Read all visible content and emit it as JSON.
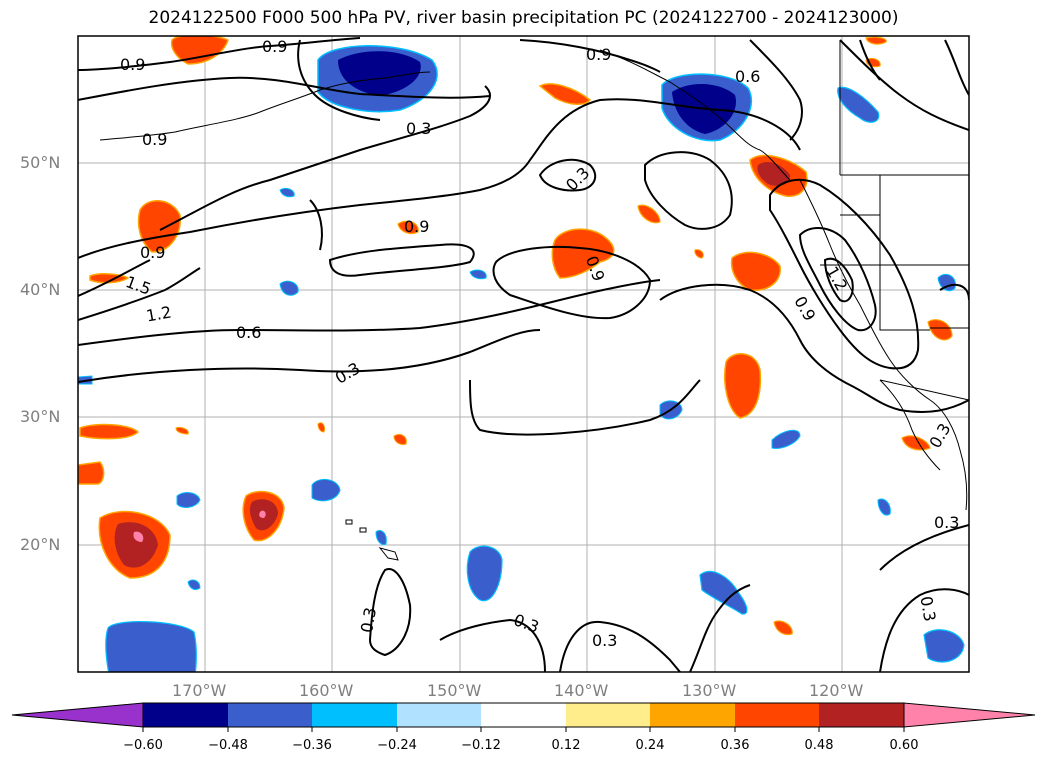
{
  "title": "2024122500 F000 500 hPa PV, river basin precipitation PC (2024122700 - 2024123000)",
  "lat_labels": [
    "50°N",
    "40°N",
    "30°N",
    "20°N"
  ],
  "lon_labels": [
    "170°W",
    "160°W",
    "150°W",
    "140°W",
    "130°W",
    "120°W"
  ],
  "colorbar": {
    "ticks": [
      "−0.60",
      "−0.48",
      "−0.36",
      "−0.24",
      "−0.12",
      "0.12",
      "0.24",
      "0.36",
      "0.48",
      "0.60"
    ],
    "colors": [
      "#9932cc",
      "#00008b",
      "#3a5fcd",
      "#00bfff",
      "#b0e2ff",
      "#ffffff",
      "#ffec8b",
      "#ffa500",
      "#ff4500",
      "#b22222",
      "#ff82ab",
      "#ff82ab"
    ]
  },
  "contour_labels": [
    "0.9",
    "0.9",
    "0.9",
    "0.3",
    "0.9",
    "0.6",
    "0.3",
    "0.9",
    "0.9",
    "0.9",
    "1.5",
    "1.2",
    "0.6",
    "0.3",
    "1.2",
    "0.9",
    "0.3",
    "0.3",
    "0.3",
    "0.3",
    "0.3",
    "0.3"
  ]
}
